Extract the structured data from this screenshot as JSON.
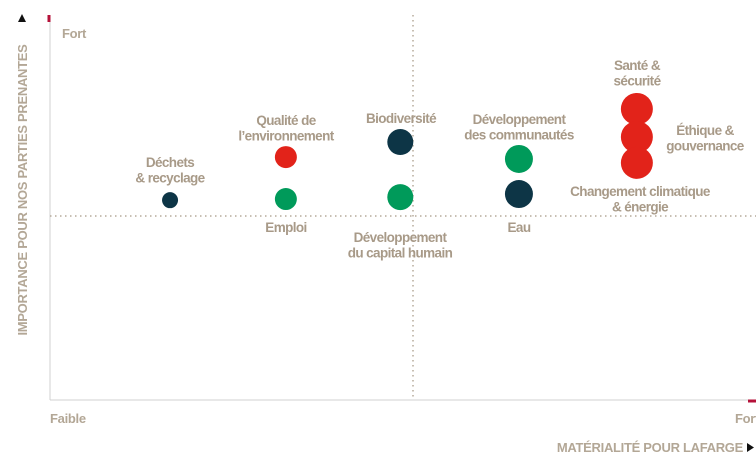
{
  "chart_data": {
    "type": "scatter",
    "y_axis_title": "IMPORTANCE POUR NOS PARTIES PRENANTES",
    "x_axis_title": "MATÉRIALITÉ POUR LAFARGE",
    "x_low_label": "Faible",
    "x_high_label": "Fort",
    "y_high_label": "Fort",
    "xlim": [
      0,
      100
    ],
    "ylim": [
      0,
      100
    ],
    "points": [
      {
        "label": [
          "Déchets",
          "& recyclage"
        ],
        "x": 17.1,
        "y": 51.9,
        "size": 8,
        "color": "#0d3546"
      },
      {
        "label": [
          "Qualité de",
          "l’environnement"
        ],
        "x": 33.6,
        "y": 63.1,
        "size": 11,
        "color": "#e2231a"
      },
      {
        "label": [
          "Emploi"
        ],
        "x": 33.6,
        "y": 52.2,
        "size": 11,
        "color": "#009a5a"
      },
      {
        "label": [
          "Biodiversité"
        ],
        "x": 49.9,
        "y": 67.0,
        "size": 13,
        "color": "#0d3546"
      },
      {
        "label": [
          "Développement",
          "du capital humain"
        ],
        "x": 49.9,
        "y": 52.7,
        "size": 13,
        "color": "#009a5a"
      },
      {
        "label": [
          "Développement",
          "des communautés"
        ],
        "x": 66.8,
        "y": 62.6,
        "size": 14,
        "color": "#009a5a"
      },
      {
        "label": [
          "Eau"
        ],
        "x": 66.8,
        "y": 53.5,
        "size": 14,
        "color": "#0d3546"
      },
      {
        "label": [
          "Santé &",
          "sécurité"
        ],
        "x": 83.6,
        "y": 75.6,
        "size": 16,
        "color": "#e2231a"
      },
      {
        "label": [
          "Éthique &",
          "gouvernance"
        ],
        "x": 83.6,
        "y": 68.3,
        "size": 16,
        "color": "#e2231a"
      },
      {
        "label": [
          "Changement climatique",
          "& énergie"
        ],
        "x": 83.6,
        "y": 61.6,
        "size": 16,
        "color": "#e2231a"
      }
    ]
  }
}
